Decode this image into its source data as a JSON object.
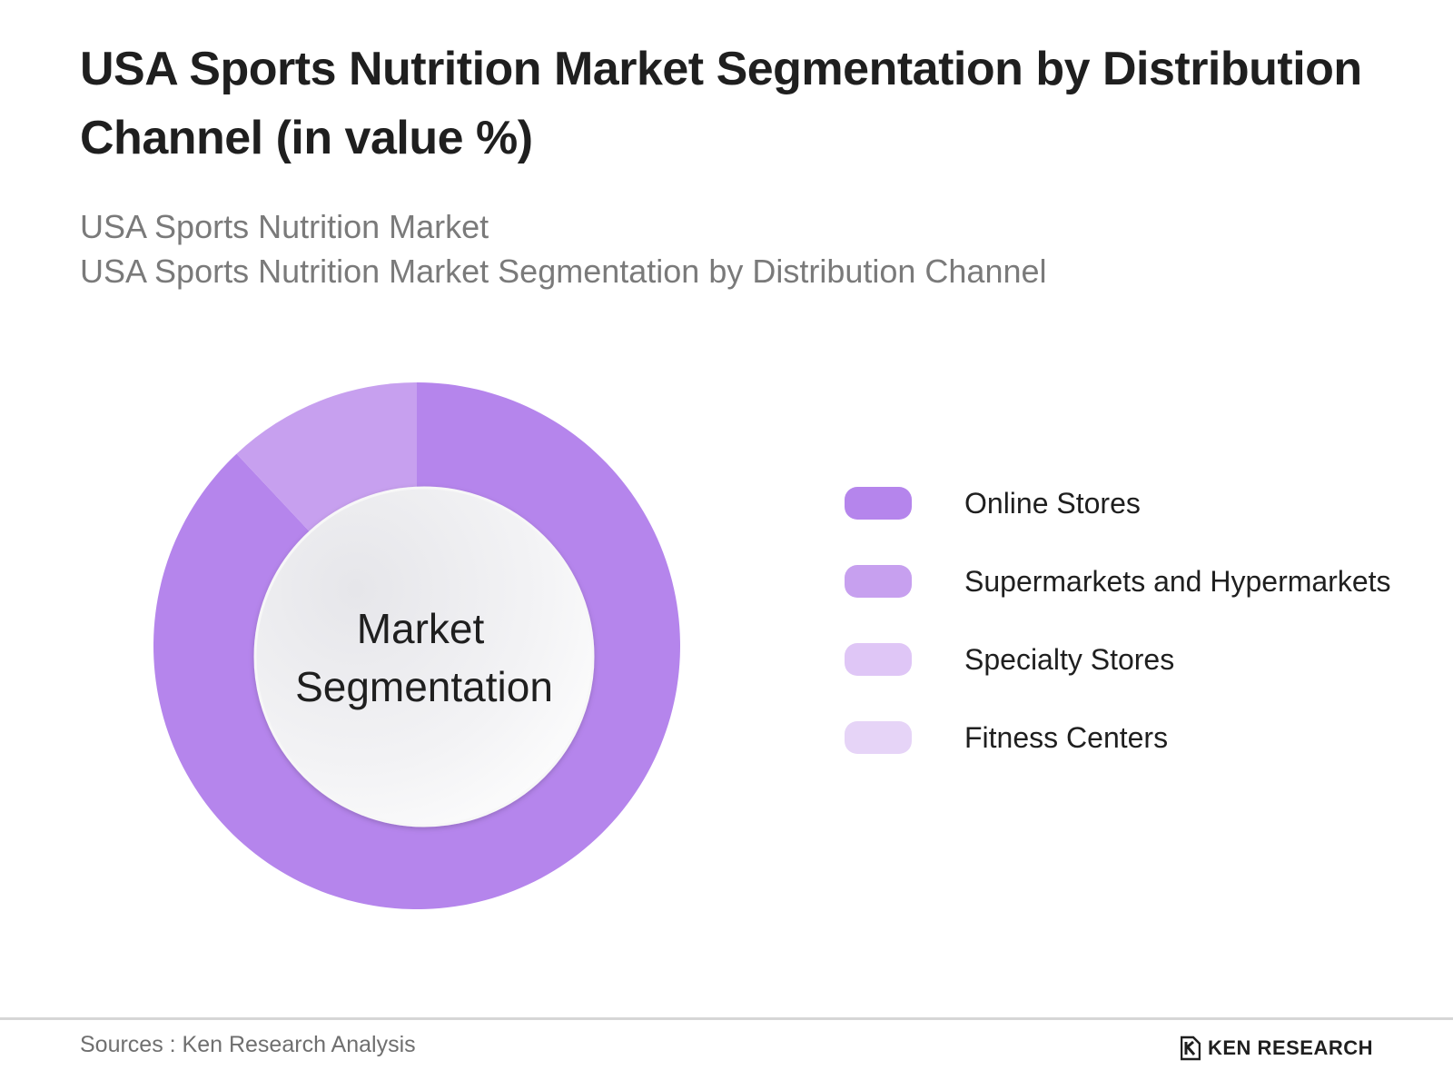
{
  "header": {
    "title": "USA Sports Nutrition Market Segmentation by Distribution Channel (in value %)",
    "subtitle_1": "USA Sports Nutrition Market",
    "subtitle_2": "USA Sports Nutrition Market Segmentation by Distribution Channel"
  },
  "chart_data": {
    "type": "pie",
    "variant": "donut",
    "center_label": "Market Segmentation",
    "categories": [
      "Online Stores",
      "Supermarkets and Hypermarkets",
      "Specialty Stores",
      "Fitness Centers"
    ],
    "values": [
      88,
      12,
      0,
      0
    ],
    "value_unit": "%",
    "colors": [
      "#b585ec",
      "#c7a0ef",
      "#dfc6f6",
      "#e6d4f7"
    ],
    "legend_position": "right"
  },
  "footer": {
    "source": "Sources : Ken Research Analysis",
    "logo_text": "KEN RESEARCH"
  }
}
